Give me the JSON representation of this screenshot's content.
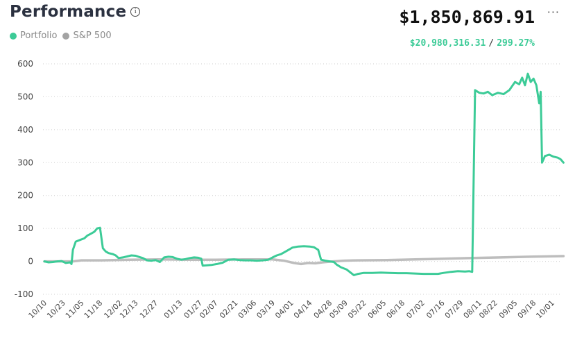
{
  "header": {
    "title": "Performance",
    "info_icon": "info-icon",
    "more_icon": "more-icon",
    "value": "$1,850,869.91",
    "gain_amount": "$20,980,316.31",
    "gain_separator": "/",
    "gain_percent": "299.27%"
  },
  "colors": {
    "portfolio": "#3ccb97",
    "sp500": "#bdbdbd",
    "gain": "#3ccb97"
  },
  "legend": [
    {
      "name": "Portfolio",
      "color": "#3ccb97"
    },
    {
      "name": "S&P 500",
      "color": "#a3a3a3"
    }
  ],
  "chart_data": {
    "type": "line",
    "ylim": [
      -100,
      600
    ],
    "yticks": [
      600,
      500,
      400,
      300,
      200,
      100,
      0,
      -100
    ],
    "xlim": [
      0,
      358
    ],
    "x_tick_labels": [
      "10/10",
      "10/23",
      "11/05",
      "11/18",
      "12/02",
      "12/13",
      "12/27",
      "01/13",
      "01/27",
      "02/07",
      "02/21",
      "03/06",
      "03/19",
      "04/01",
      "04/14",
      "04/28",
      "05/09",
      "05/22",
      "06/05",
      "06/18",
      "07/02",
      "07/16",
      "07/29",
      "08/11",
      "08/22",
      "09/05",
      "09/18",
      "10/01"
    ],
    "x_tick_positions": [
      0,
      13,
      26,
      39,
      53,
      64,
      78,
      95,
      109,
      120,
      134,
      147,
      160,
      173,
      186,
      200,
      211,
      224,
      238,
      251,
      265,
      279,
      292,
      305,
      316,
      330,
      343,
      356
    ],
    "grid": true,
    "series": [
      {
        "name": "Portfolio",
        "points": [
          [
            0,
            0
          ],
          [
            3,
            -3
          ],
          [
            6,
            -2
          ],
          [
            9,
            0
          ],
          [
            12,
            1
          ],
          [
            15,
            -5
          ],
          [
            18,
            -3
          ],
          [
            19,
            -8
          ],
          [
            20,
            35
          ],
          [
            22,
            60
          ],
          [
            25,
            65
          ],
          [
            28,
            70
          ],
          [
            30,
            78
          ],
          [
            33,
            85
          ],
          [
            35,
            90
          ],
          [
            37,
            100
          ],
          [
            39,
            102
          ],
          [
            41,
            40
          ],
          [
            43,
            30
          ],
          [
            45,
            25
          ],
          [
            48,
            22
          ],
          [
            50,
            18
          ],
          [
            52,
            10
          ],
          [
            55,
            12
          ],
          [
            58,
            15
          ],
          [
            61,
            18
          ],
          [
            64,
            17
          ],
          [
            66,
            14
          ],
          [
            69,
            10
          ],
          [
            72,
            3
          ],
          [
            75,
            2
          ],
          [
            78,
            4
          ],
          [
            81,
            -2
          ],
          [
            84,
            12
          ],
          [
            87,
            14
          ],
          [
            90,
            13
          ],
          [
            93,
            8
          ],
          [
            96,
            5
          ],
          [
            99,
            7
          ],
          [
            102,
            10
          ],
          [
            105,
            12
          ],
          [
            108,
            11
          ],
          [
            110,
            8
          ],
          [
            111,
            -13
          ],
          [
            114,
            -12
          ],
          [
            117,
            -11
          ],
          [
            121,
            -8
          ],
          [
            125,
            -4
          ],
          [
            129,
            5
          ],
          [
            133,
            6
          ],
          [
            137,
            4
          ],
          [
            141,
            3
          ],
          [
            145,
            3
          ],
          [
            149,
            2
          ],
          [
            153,
            3
          ],
          [
            157,
            5
          ],
          [
            160,
            12
          ],
          [
            163,
            18
          ],
          [
            166,
            22
          ],
          [
            170,
            32
          ],
          [
            174,
            42
          ],
          [
            178,
            45
          ],
          [
            182,
            46
          ],
          [
            186,
            45
          ],
          [
            189,
            43
          ],
          [
            192,
            35
          ],
          [
            194,
            5
          ],
          [
            197,
            2
          ],
          [
            200,
            0
          ],
          [
            203,
            -2
          ],
          [
            205,
            -10
          ],
          [
            208,
            -18
          ],
          [
            212,
            -25
          ],
          [
            215,
            -35
          ],
          [
            217,
            -42
          ],
          [
            220,
            -38
          ],
          [
            224,
            -35
          ],
          [
            230,
            -35
          ],
          [
            236,
            -34
          ],
          [
            242,
            -35
          ],
          [
            248,
            -36
          ],
          [
            254,
            -36
          ],
          [
            260,
            -37
          ],
          [
            266,
            -38
          ],
          [
            272,
            -38
          ],
          [
            276,
            -38
          ],
          [
            280,
            -35
          ],
          [
            285,
            -32
          ],
          [
            290,
            -30
          ],
          [
            295,
            -31
          ],
          [
            298,
            -30
          ],
          [
            300,
            -32
          ],
          [
            302,
            520
          ],
          [
            305,
            512
          ],
          [
            308,
            510
          ],
          [
            311,
            515
          ],
          [
            314,
            505
          ],
          [
            318,
            512
          ],
          [
            322,
            508
          ],
          [
            326,
            520
          ],
          [
            330,
            545
          ],
          [
            333,
            538
          ],
          [
            335,
            558
          ],
          [
            337,
            535
          ],
          [
            339,
            570
          ],
          [
            341,
            545
          ],
          [
            343,
            555
          ],
          [
            345,
            535
          ],
          [
            347,
            480
          ],
          [
            348,
            515
          ],
          [
            349,
            300
          ],
          [
            351,
            320
          ],
          [
            354,
            324
          ],
          [
            357,
            318
          ],
          [
            360,
            315
          ],
          [
            362,
            310
          ],
          [
            364,
            300
          ]
        ]
      },
      {
        "name": "S&P 500",
        "points": [
          [
            0,
            0
          ],
          [
            20,
            0
          ],
          [
            26,
            3
          ],
          [
            40,
            3
          ],
          [
            60,
            5
          ],
          [
            80,
            6
          ],
          [
            100,
            5
          ],
          [
            120,
            5
          ],
          [
            140,
            6
          ],
          [
            160,
            6
          ],
          [
            168,
            2
          ],
          [
            175,
            -5
          ],
          [
            180,
            -8
          ],
          [
            185,
            -5
          ],
          [
            190,
            -6
          ],
          [
            195,
            -3
          ],
          [
            200,
            -1
          ],
          [
            210,
            2
          ],
          [
            220,
            3
          ],
          [
            240,
            4
          ],
          [
            260,
            6
          ],
          [
            280,
            8
          ],
          [
            300,
            10
          ],
          [
            320,
            12
          ],
          [
            340,
            14
          ],
          [
            364,
            16
          ]
        ]
      }
    ]
  }
}
